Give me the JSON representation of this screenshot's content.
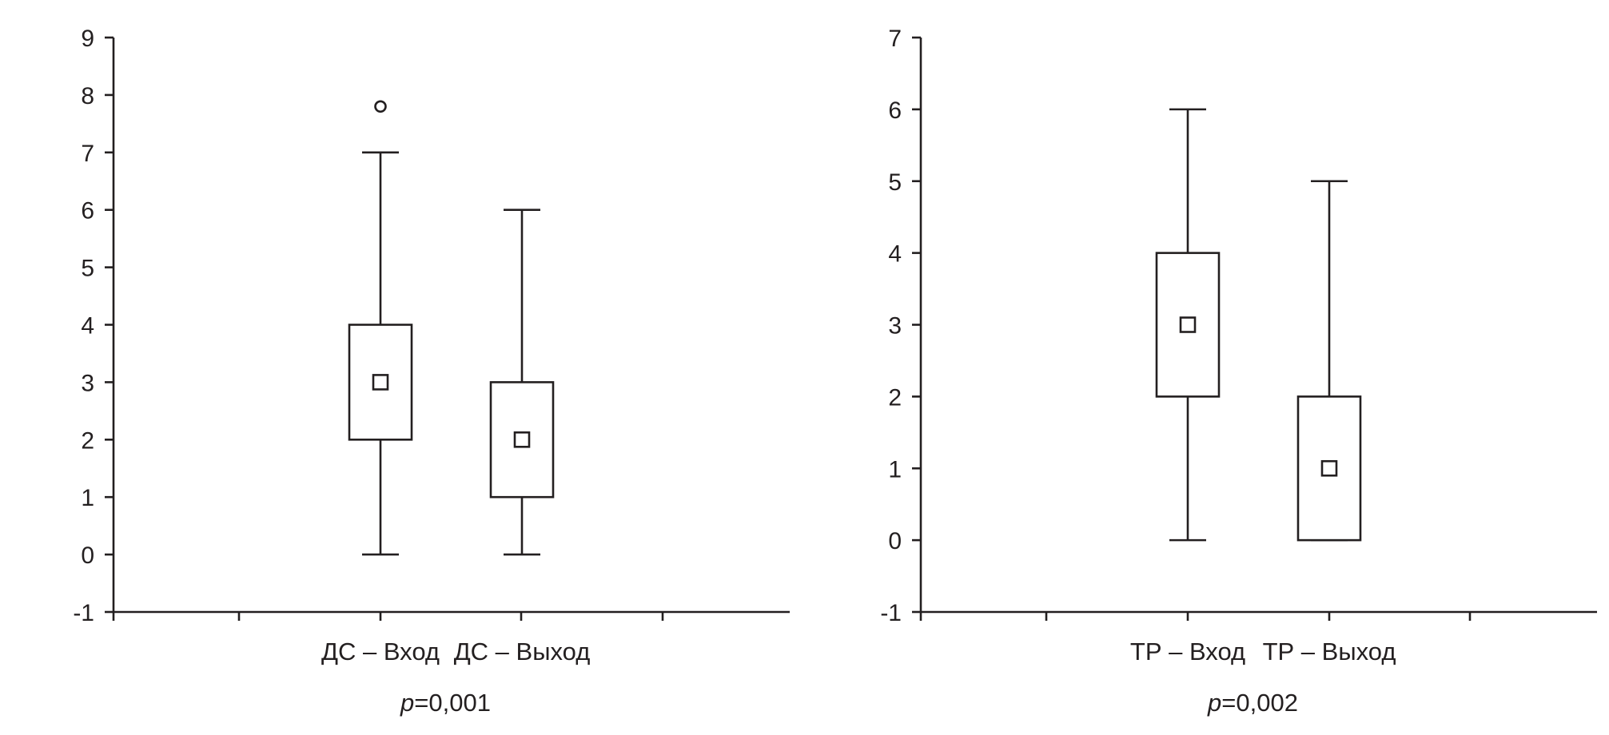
{
  "colors": {
    "ink": "#231f20",
    "background": "#ffffff"
  },
  "chart_data": [
    {
      "type": "box",
      "ylim": [
        -1,
        9
      ],
      "yticks": [
        "-1",
        "0",
        "1",
        "2",
        "3",
        "4",
        "5",
        "6",
        "7",
        "8",
        "9"
      ],
      "grid": false,
      "categories": [
        "ДС – Вход",
        "ДС – Выход"
      ],
      "boxes": [
        {
          "label": "ДС – Вход",
          "whisker_low": 0,
          "q1": 2,
          "median": 3,
          "q3": 4,
          "whisker_high": 7,
          "outliers": [
            7.8
          ]
        },
        {
          "label": "ДС – Выход",
          "whisker_low": 0,
          "q1": 1,
          "median": 2,
          "q3": 3,
          "whisker_high": 6,
          "outliers": []
        }
      ],
      "annotation_prefix": "p",
      "annotation_value": "=0,001"
    },
    {
      "type": "box",
      "ylim": [
        -1,
        7
      ],
      "yticks": [
        "-1",
        "0",
        "1",
        "2",
        "3",
        "4",
        "5",
        "6",
        "7"
      ],
      "grid": false,
      "categories": [
        "ТР – Вход",
        "ТР – Выход"
      ],
      "boxes": [
        {
          "label": "ТР – Вход",
          "whisker_low": 0,
          "q1": 2,
          "median": 3,
          "q3": 4,
          "whisker_high": 6,
          "outliers": []
        },
        {
          "label": "ТР – Выход",
          "whisker_low": 0,
          "q1": 0,
          "median": 1,
          "q3": 2,
          "whisker_high": 5,
          "outliers": []
        }
      ],
      "annotation_prefix": "p",
      "annotation_value": "=0,002"
    }
  ]
}
